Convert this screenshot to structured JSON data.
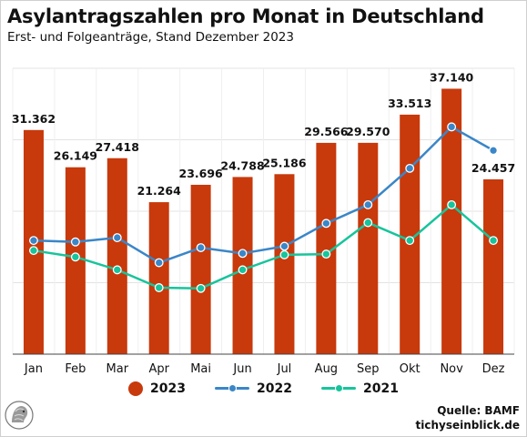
{
  "title": "Asylantragszahlen pro Monat in Deutschland",
  "subtitle": "Erst- und Folgeanträge, Stand Dezember 2023",
  "source": {
    "line1": "Quelle: BAMF",
    "line2": "tichyseinblick.de"
  },
  "colors": {
    "s2023": "#c8390c",
    "s2022": "#3a86c8",
    "s2021": "#17c49b",
    "grid": "#e3e3e3"
  },
  "chart_data": {
    "type": "bar",
    "categories": [
      "Jan",
      "Feb",
      "Mar",
      "Apr",
      "Mai",
      "Jun",
      "Jul",
      "Aug",
      "Sep",
      "Okt",
      "Nov",
      "Dez"
    ],
    "ylim": [
      0,
      40000
    ],
    "grid": true,
    "legend_position": "bottom",
    "series": [
      {
        "name": "2023",
        "type": "bar",
        "values": [
          31362,
          26149,
          27418,
          21264,
          23696,
          24788,
          25186,
          29566,
          29570,
          33513,
          37140,
          24457
        ],
        "labels": [
          "31.362",
          "26.149",
          "27.418",
          "21.264",
          "23.696",
          "24.788",
          "25.186",
          "29.566",
          "29.570",
          "33.513",
          "37.140",
          "24.457"
        ]
      },
      {
        "name": "2022",
        "type": "line",
        "values": [
          15900,
          15700,
          16300,
          12800,
          14900,
          14100,
          15100,
          18300,
          20900,
          26000,
          31800,
          28500
        ]
      },
      {
        "name": "2021",
        "type": "line",
        "values": [
          14500,
          13600,
          11800,
          9300,
          9200,
          11800,
          13900,
          14000,
          18400,
          15900,
          20900,
          15900
        ]
      }
    ]
  }
}
